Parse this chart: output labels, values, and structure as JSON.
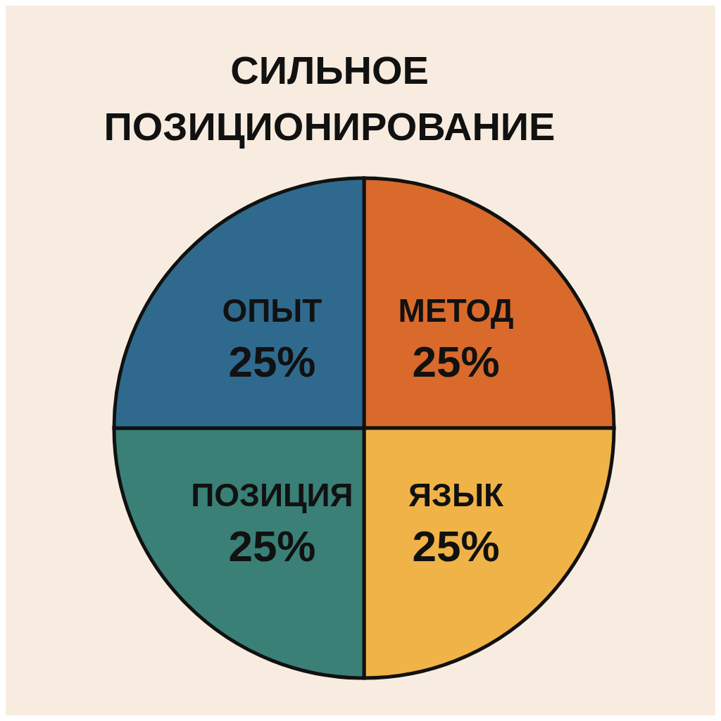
{
  "chart_data": {
    "type": "pie",
    "title": "СИЛЬНОЕ ПОЗИЦИОНИРОВАНИЕ",
    "categories": [
      "МЕТОД",
      "ЯЗЫК",
      "ПОЗИЦИЯ",
      "ОПЫТ"
    ],
    "values": [
      25,
      25,
      25,
      25
    ],
    "value_labels": [
      "25%",
      "25%",
      "25%",
      "25%"
    ],
    "colors": [
      "#d96a2b",
      "#f0b347",
      "#3a8077",
      "#2f6a8e"
    ]
  }
}
